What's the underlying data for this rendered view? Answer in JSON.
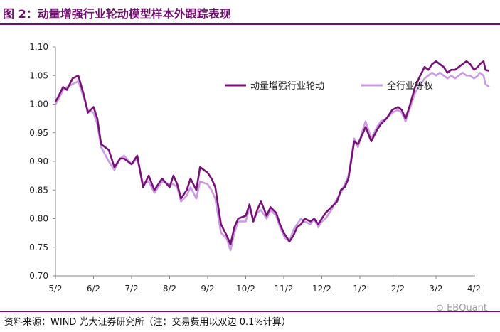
{
  "header": {
    "title": "图 2：动量增强行业轮动模型样本外跟踪表现"
  },
  "footer": {
    "source": "资料来源：WIND 光大证券研究所（注：交易费用以双边 0.1%计算）",
    "watermark": "EBQuant"
  },
  "colors": {
    "momentum": "#7a0f7a",
    "equal": "#c99ae6",
    "axis": "#888888",
    "title": "#6e0f6e"
  },
  "chart_data": {
    "type": "line",
    "title": "",
    "xlabel": "",
    "ylabel": "",
    "ylim": [
      0.7,
      1.1
    ],
    "yticks": [
      "0.70",
      "0.75",
      "0.80",
      "0.85",
      "0.90",
      "0.95",
      "1.00",
      "1.05",
      "1.10"
    ],
    "x_tick_labels": [
      "5/2",
      "6/2",
      "7/2",
      "8/2",
      "9/2",
      "10/2",
      "11/2",
      "12/2",
      "1/2",
      "2/2",
      "3/2",
      "4/2"
    ],
    "legend_position": "top-right",
    "grid": false,
    "series": [
      {
        "name": "动量增强行业轮动",
        "color": "#7a0f7a",
        "x": [
          0,
          0.05,
          0.2,
          0.3,
          0.45,
          0.6,
          0.75,
          0.85,
          1.0,
          1.1,
          1.2,
          1.4,
          1.55,
          1.7,
          1.8,
          2.0,
          2.15,
          2.3,
          2.45,
          2.6,
          2.8,
          3.0,
          3.1,
          3.2,
          3.3,
          3.45,
          3.55,
          3.7,
          3.8,
          4.0,
          4.1,
          4.2,
          4.35,
          4.5,
          4.6,
          4.7,
          4.8,
          5.0,
          5.1,
          5.2,
          5.3,
          5.4,
          5.55,
          5.65,
          5.8,
          5.9,
          6.0,
          6.05,
          6.15,
          6.25,
          6.35,
          6.45,
          6.55,
          6.7,
          6.8,
          6.9,
          7.0,
          7.1,
          7.25,
          7.4,
          7.5,
          7.6,
          7.7,
          7.85,
          7.95,
          8.05,
          8.15,
          8.3,
          8.45,
          8.55,
          8.7,
          8.85,
          9.0,
          9.1,
          9.2,
          9.3,
          9.45,
          9.55,
          9.7,
          9.8,
          9.9,
          10.0,
          10.1,
          10.2,
          10.3,
          10.4,
          10.5,
          10.6,
          10.7,
          10.8,
          10.9,
          11.0,
          11.1,
          11.15,
          11.25,
          11.3,
          11.4
        ],
        "values": [
          1.005,
          1.01,
          1.03,
          1.025,
          1.045,
          1.05,
          1.015,
          0.985,
          0.995,
          0.975,
          0.93,
          0.92,
          0.89,
          0.905,
          0.905,
          0.895,
          0.91,
          0.855,
          0.875,
          0.85,
          0.87,
          0.855,
          0.875,
          0.86,
          0.835,
          0.85,
          0.87,
          0.85,
          0.89,
          0.88,
          0.87,
          0.855,
          0.79,
          0.77,
          0.755,
          0.785,
          0.8,
          0.805,
          0.825,
          0.795,
          0.815,
          0.83,
          0.805,
          0.82,
          0.81,
          0.79,
          0.775,
          0.77,
          0.76,
          0.77,
          0.785,
          0.79,
          0.8,
          0.795,
          0.8,
          0.79,
          0.8,
          0.81,
          0.82,
          0.83,
          0.85,
          0.855,
          0.87,
          0.935,
          0.93,
          0.945,
          0.96,
          0.935,
          0.955,
          0.965,
          0.975,
          0.99,
          0.995,
          0.99,
          0.975,
          0.995,
          1.03,
          1.045,
          1.065,
          1.06,
          1.07,
          1.075,
          1.07,
          1.065,
          1.055,
          1.06,
          1.06,
          1.065,
          1.07,
          1.075,
          1.07,
          1.06,
          1.065,
          1.07,
          1.075,
          1.06,
          1.058
        ]
      },
      {
        "name": "全行业等权",
        "color": "#c99ae6",
        "x": [
          0,
          0.05,
          0.2,
          0.3,
          0.45,
          0.6,
          0.75,
          0.85,
          1.0,
          1.1,
          1.2,
          1.4,
          1.55,
          1.7,
          1.8,
          2.0,
          2.15,
          2.3,
          2.45,
          2.6,
          2.8,
          3.0,
          3.1,
          3.2,
          3.3,
          3.45,
          3.55,
          3.7,
          3.8,
          4.0,
          4.1,
          4.2,
          4.35,
          4.5,
          4.6,
          4.7,
          4.8,
          5.0,
          5.1,
          5.2,
          5.3,
          5.4,
          5.55,
          5.65,
          5.8,
          5.9,
          6.0,
          6.05,
          6.15,
          6.25,
          6.35,
          6.45,
          6.55,
          6.7,
          6.8,
          6.9,
          7.0,
          7.1,
          7.25,
          7.4,
          7.5,
          7.6,
          7.7,
          7.85,
          7.95,
          8.05,
          8.15,
          8.3,
          8.45,
          8.55,
          8.7,
          8.85,
          9.0,
          9.1,
          9.2,
          9.3,
          9.45,
          9.55,
          9.7,
          9.8,
          9.9,
          10.0,
          10.1,
          10.2,
          10.3,
          10.4,
          10.5,
          10.6,
          10.7,
          10.8,
          10.9,
          11.0,
          11.1,
          11.15,
          11.25,
          11.3,
          11.4
        ],
        "values": [
          1.0,
          1.005,
          1.025,
          1.03,
          1.035,
          1.04,
          1.01,
          0.99,
          0.985,
          0.965,
          0.925,
          0.9,
          0.885,
          0.905,
          0.91,
          0.895,
          0.905,
          0.86,
          0.865,
          0.845,
          0.865,
          0.86,
          0.86,
          0.855,
          0.83,
          0.84,
          0.855,
          0.835,
          0.865,
          0.86,
          0.85,
          0.835,
          0.775,
          0.765,
          0.745,
          0.775,
          0.795,
          0.795,
          0.82,
          0.795,
          0.81,
          0.815,
          0.8,
          0.815,
          0.805,
          0.785,
          0.77,
          0.765,
          0.76,
          0.78,
          0.79,
          0.8,
          0.795,
          0.79,
          0.8,
          0.785,
          0.795,
          0.8,
          0.815,
          0.835,
          0.845,
          0.86,
          0.875,
          0.94,
          0.925,
          0.95,
          0.97,
          0.94,
          0.96,
          0.97,
          0.975,
          0.985,
          0.99,
          0.985,
          0.97,
          0.99,
          1.02,
          1.03,
          1.045,
          1.05,
          1.055,
          1.05,
          1.055,
          1.05,
          1.045,
          1.05,
          1.045,
          1.05,
          1.055,
          1.05,
          1.05,
          1.045,
          1.05,
          1.055,
          1.05,
          1.035,
          1.03
        ]
      }
    ]
  }
}
